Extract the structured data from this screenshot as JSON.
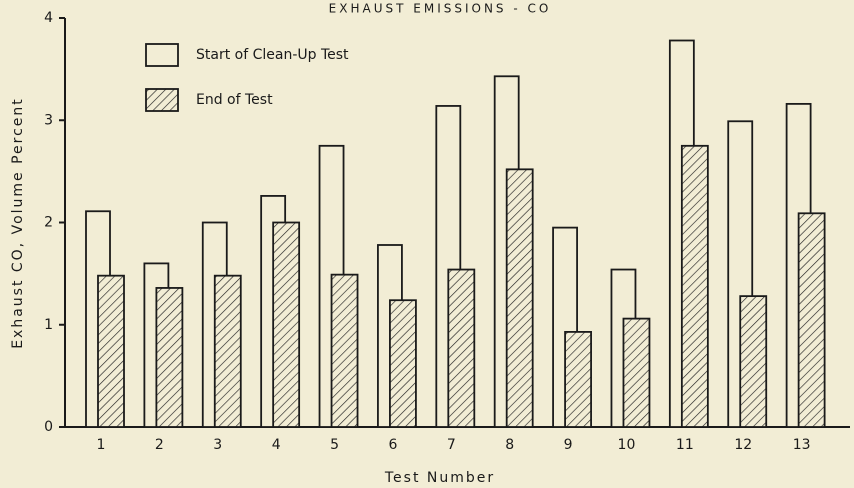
{
  "chart_data": {
    "type": "bar",
    "title": "EXHAUST EMISSIONS - CO",
    "x_label": "Test Number",
    "y_label": "Exhaust CO, Volume Percent",
    "categories": [
      "1",
      "2",
      "3",
      "4",
      "5",
      "6",
      "7",
      "8",
      "9",
      "10",
      "11",
      "12",
      "13"
    ],
    "series": [
      {
        "name": "Start of Clean-Up Test",
        "color": "#f2edd5",
        "values": [
          2.11,
          1.6,
          2.0,
          2.26,
          2.75,
          1.78,
          3.14,
          3.43,
          1.95,
          1.54,
          3.78,
          2.99,
          3.16
        ]
      },
      {
        "name": "End of Test",
        "color": "#f2edd5",
        "hatch": true,
        "values": [
          1.48,
          1.36,
          1.48,
          2.0,
          1.49,
          1.24,
          1.54,
          2.52,
          0.93,
          1.06,
          2.75,
          1.28,
          2.09
        ]
      }
    ],
    "ylim": [
      0,
      4
    ],
    "yticks": [
      0,
      1,
      2,
      3,
      4
    ],
    "grid": false
  }
}
